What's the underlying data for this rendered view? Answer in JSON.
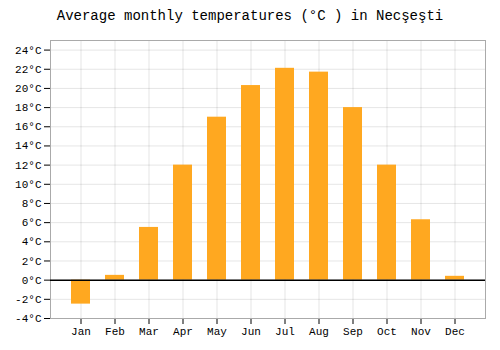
{
  "chart_data": {
    "type": "bar",
    "title": "Average monthly temperatures (°C ) in Necşeşti",
    "categories": [
      "Jan",
      "Feb",
      "Mar",
      "Apr",
      "May",
      "Jun",
      "Jul",
      "Aug",
      "Sep",
      "Oct",
      "Nov",
      "Dec"
    ],
    "values": [
      -2.5,
      0.5,
      5.5,
      12.0,
      17.0,
      20.3,
      22.1,
      21.7,
      18.0,
      12.0,
      6.3,
      0.4
    ],
    "color": "#FFA820",
    "ylim": [
      -4,
      25
    ],
    "yticks": [
      {
        "value": -4,
        "label": "-4°C"
      },
      {
        "value": -2,
        "label": "-2°C"
      },
      {
        "value": 0,
        "label": "0°C"
      },
      {
        "value": 2,
        "label": "2°C"
      },
      {
        "value": 4,
        "label": "4°C"
      },
      {
        "value": 6,
        "label": "6°C"
      },
      {
        "value": 8,
        "label": "8°C"
      },
      {
        "value": 10,
        "label": "10°C"
      },
      {
        "value": 12,
        "label": "12°C"
      },
      {
        "value": 14,
        "label": "14°C"
      },
      {
        "value": 16,
        "label": "16°C"
      },
      {
        "value": 18,
        "label": "18°C"
      },
      {
        "value": 20,
        "label": "20°C"
      },
      {
        "value": 22,
        "label": "22°C"
      },
      {
        "value": 24,
        "label": "24°C"
      }
    ],
    "grid": true
  }
}
